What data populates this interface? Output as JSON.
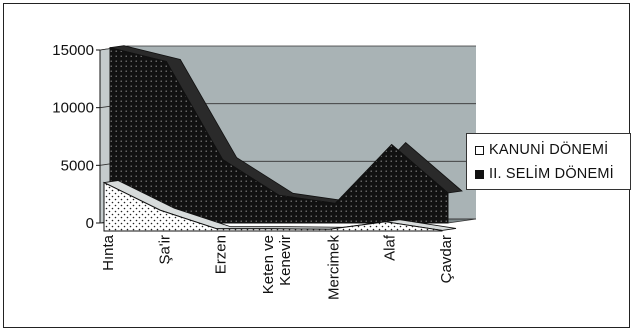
{
  "chart_data": {
    "type": "area",
    "title": "",
    "xlabel": "",
    "ylabel": "",
    "categories": [
      "Hınta",
      "Şa'ir",
      "Erzen",
      "Keten ve Kenevir",
      "Mercimek",
      "Alaf",
      "Çavdar"
    ],
    "category_lines": [
      [
        "Hınta"
      ],
      [
        "Şa'ir"
      ],
      [
        "Erzen"
      ],
      [
        "Keten ve",
        "Kenevir"
      ],
      [
        "Mercimek"
      ],
      [
        "Alaf"
      ],
      [
        "Çavdar"
      ]
    ],
    "ylim": [
      0,
      15000
    ],
    "yticks": [
      0,
      5000,
      10000,
      15000
    ],
    "grid": true,
    "three_d": true,
    "legend_position": "right",
    "series": [
      {
        "name": "KANUNİ DÖNEMİ",
        "values": [
          4200,
          1800,
          200,
          200,
          150,
          800,
          50
        ],
        "color": "#ffffff"
      },
      {
        "name": "II. SELİM DÖNEMİ",
        "values": [
          15200,
          14000,
          5500,
          2400,
          1700,
          6800,
          2600
        ],
        "color": "#111111"
      }
    ],
    "wall_color": "#a9b3b5",
    "floor_color": "#7f8a8c"
  }
}
